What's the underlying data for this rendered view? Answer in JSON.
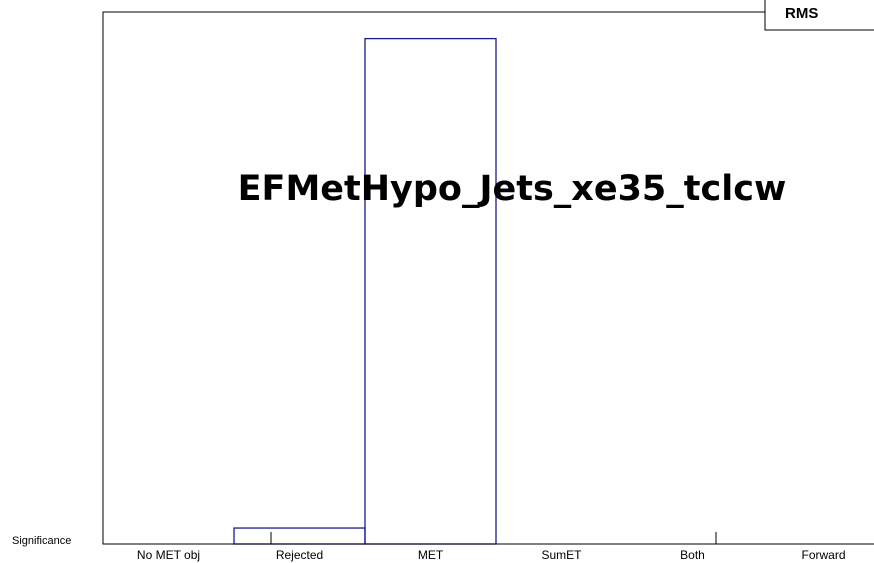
{
  "chart_data": {
    "type": "histogram",
    "title": "EFMetHypo_Jets_xe35_tclcw",
    "stats_label": "RMS",
    "ylabel": "Significance",
    "categories": [
      "No MET obj",
      "Rejected",
      "MET",
      "SumET",
      "Both",
      "Forward"
    ],
    "values": [
      0,
      3,
      95,
      0,
      0,
      0
    ],
    "color": "#1c1c8c",
    "ylim": [
      0,
      100
    ]
  }
}
